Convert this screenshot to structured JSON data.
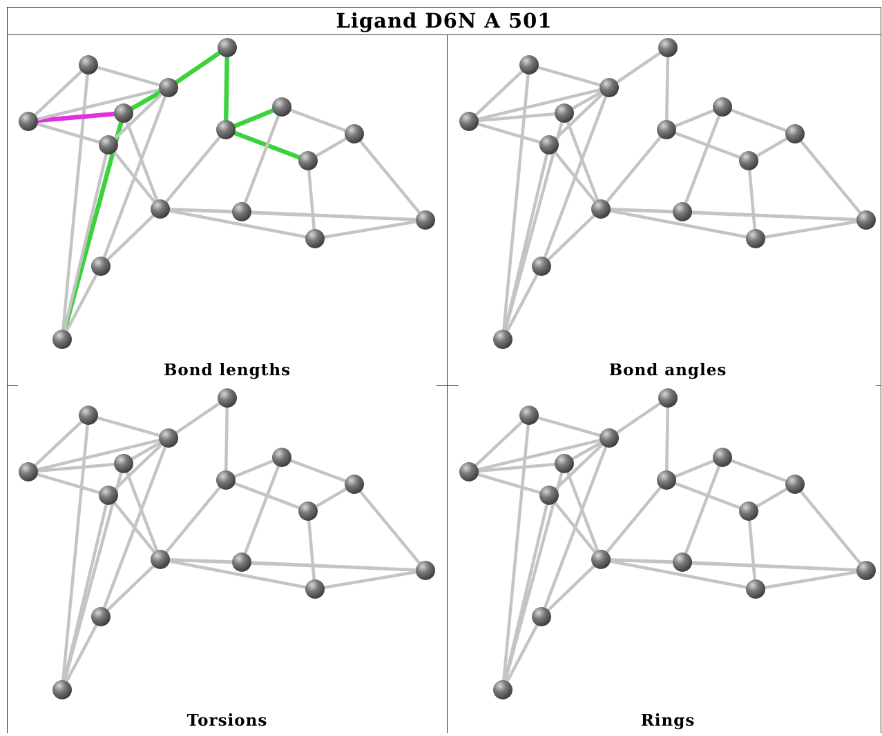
{
  "title": "Ligand D6N A 501",
  "panels": [
    {
      "caption": "Bond lengths",
      "highlight": true
    },
    {
      "caption": "Bond angles",
      "highlight": false
    },
    {
      "caption": "Torsions",
      "highlight": false
    },
    {
      "caption": "Rings",
      "highlight": false
    }
  ],
  "colors": {
    "bond": "#c4c4c4",
    "atom": "#7a7a7a",
    "highlight_green": "#3cd23c",
    "highlight_magenta": "#e030e0",
    "border": "#333333"
  }
}
